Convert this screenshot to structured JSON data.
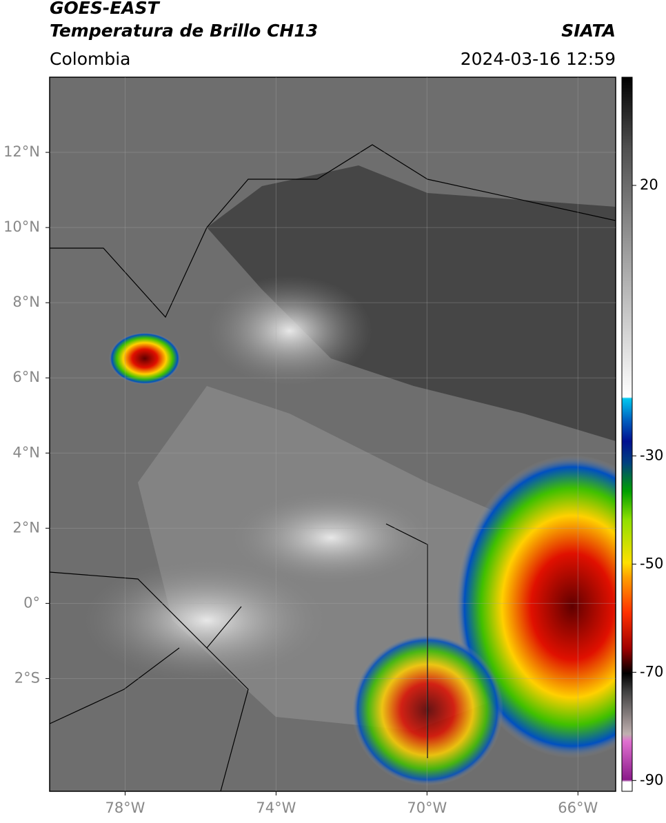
{
  "header": {
    "title": "GOES-EAST",
    "subtitle": "Temperatura de Brillo CH13",
    "region": "Colombia",
    "source": "SIATA",
    "datetime": "2024-03-16 12:59"
  },
  "map": {
    "xlim": [
      -80,
      -65
    ],
    "ylim": [
      -5,
      14
    ],
    "xticks": [
      {
        "value": -78,
        "label": "78°W"
      },
      {
        "value": -74,
        "label": "74°W"
      },
      {
        "value": -70,
        "label": "70°W"
      },
      {
        "value": -66,
        "label": "66°W"
      }
    ],
    "yticks": [
      {
        "value": 12,
        "label": "12°N"
      },
      {
        "value": 10,
        "label": "10°N"
      },
      {
        "value": 8,
        "label": "8°N"
      },
      {
        "value": 6,
        "label": "6°N"
      },
      {
        "value": 4,
        "label": "4°N"
      },
      {
        "value": 2,
        "label": "2°N"
      },
      {
        "value": 0,
        "label": "0°"
      },
      {
        "value": -2,
        "label": "2°S"
      }
    ],
    "grid": true
  },
  "colorbar": {
    "lim": [
      -92,
      40
    ],
    "ticks": [
      20,
      -30,
      -50,
      -70,
      -90
    ]
  }
}
